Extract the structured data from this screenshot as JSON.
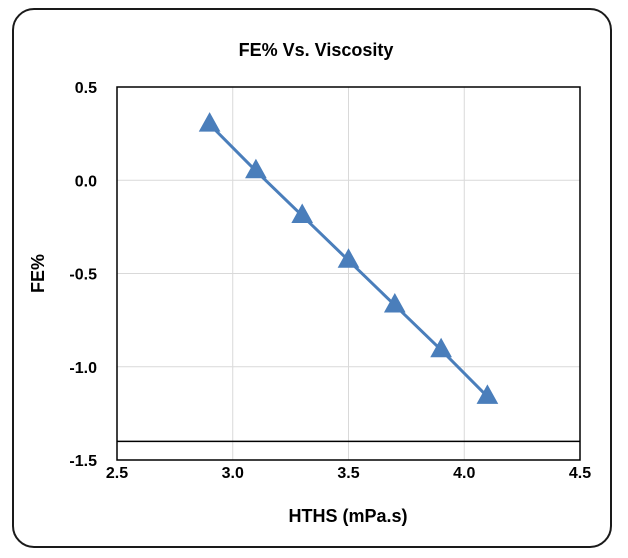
{
  "chart_data": {
    "type": "scatter",
    "title": "FE% Vs. Viscosity",
    "xlabel": "HTHS (mPa.s)",
    "ylabel": "FE%",
    "xlim": [
      2.5,
      4.5
    ],
    "ylim": [
      -1.5,
      0.5
    ],
    "x_ticks": [
      "2.5",
      "3.0",
      "3.5",
      "4.0",
      "4.5"
    ],
    "y_ticks": [
      "0.5",
      "0.0",
      "-0.5",
      "-1.0",
      "-1.5"
    ],
    "grid": true,
    "series": [
      {
        "marker": "triangle",
        "line": "straight",
        "color": "#4a7ebb",
        "x": [
          2.9,
          3.1,
          3.3,
          3.5,
          3.7,
          3.9,
          4.1
        ],
        "y": [
          0.3,
          0.05,
          -0.19,
          -0.43,
          -0.67,
          -0.91,
          -1.16
        ]
      }
    ],
    "reference_line": {
      "y": -1.4,
      "color": "#000000"
    }
  }
}
